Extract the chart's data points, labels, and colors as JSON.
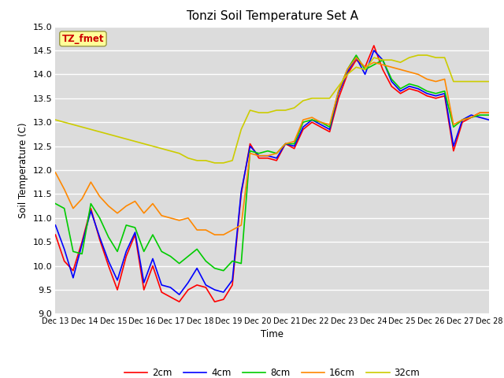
{
  "title": "Tonzi Soil Temperature Set A",
  "xlabel": "Time",
  "ylabel": "Soil Temperature (C)",
  "ylim": [
    9.0,
    15.0
  ],
  "yticks": [
    9.0,
    9.5,
    10.0,
    10.5,
    11.0,
    11.5,
    12.0,
    12.5,
    13.0,
    13.5,
    14.0,
    14.5,
    15.0
  ],
  "xtick_labels": [
    "Dec 13",
    "Dec 14",
    "Dec 15",
    "Dec 16",
    "Dec 17",
    "Dec 18",
    "Dec 19",
    "Dec 20",
    "Dec 21",
    "Dec 22",
    "Dec 23",
    "Dec 24",
    "Dec 25",
    "Dec 26",
    "Dec 27",
    "Dec 28"
  ],
  "annotation_text": "TZ_fmet",
  "annotation_bg": "#ffff99",
  "annotation_fg": "#cc0000",
  "legend_labels": [
    "2cm",
    "4cm",
    "8cm",
    "16cm",
    "32cm"
  ],
  "line_colors": [
    "#ff0000",
    "#0000ff",
    "#00cc00",
    "#ff8800",
    "#cccc00"
  ],
  "fig_bg": "#ffffff",
  "plot_bg": "#dcdcdc",
  "grid_color": "#ffffff",
  "series_2cm": [
    10.65,
    10.1,
    9.9,
    10.5,
    11.2,
    10.55,
    10.0,
    9.5,
    10.2,
    10.65,
    9.5,
    10.0,
    9.45,
    9.35,
    9.25,
    9.5,
    9.6,
    9.55,
    9.25,
    9.3,
    9.6,
    11.5,
    12.55,
    12.25,
    12.25,
    12.2,
    12.55,
    12.45,
    12.85,
    13.0,
    12.9,
    12.8,
    13.5,
    14.0,
    14.3,
    14.15,
    14.6,
    14.1,
    13.75,
    13.6,
    13.7,
    13.65,
    13.55,
    13.5,
    13.55,
    12.4,
    13.0,
    13.1,
    13.2,
    13.2
  ],
  "series_4cm": [
    10.85,
    10.35,
    9.75,
    10.45,
    11.15,
    10.6,
    10.1,
    9.7,
    10.3,
    10.7,
    9.65,
    10.15,
    9.6,
    9.55,
    9.4,
    9.65,
    9.95,
    9.6,
    9.5,
    9.45,
    9.7,
    11.55,
    12.5,
    12.3,
    12.3,
    12.25,
    12.55,
    12.5,
    12.9,
    13.05,
    12.95,
    12.85,
    13.6,
    14.05,
    14.35,
    14.0,
    14.5,
    14.3,
    13.85,
    13.65,
    13.75,
    13.7,
    13.6,
    13.55,
    13.6,
    12.5,
    13.05,
    13.15,
    13.1,
    13.05
  ],
  "series_8cm": [
    11.3,
    11.2,
    10.3,
    10.25,
    11.3,
    11.0,
    10.6,
    10.3,
    10.85,
    10.8,
    10.3,
    10.65,
    10.3,
    10.2,
    10.05,
    10.2,
    10.35,
    10.1,
    9.95,
    9.9,
    10.1,
    10.05,
    12.4,
    12.35,
    12.4,
    12.35,
    12.55,
    12.55,
    13.0,
    13.05,
    13.0,
    12.9,
    13.65,
    14.1,
    14.4,
    14.1,
    14.2,
    14.3,
    13.9,
    13.7,
    13.8,
    13.75,
    13.65,
    13.6,
    13.65,
    12.9,
    13.05,
    13.1,
    13.15,
    13.15
  ],
  "series_16cm": [
    11.95,
    11.6,
    11.2,
    11.4,
    11.75,
    11.45,
    11.25,
    11.1,
    11.25,
    11.35,
    11.1,
    11.3,
    11.05,
    11.0,
    10.95,
    11.0,
    10.75,
    10.75,
    10.65,
    10.65,
    10.75,
    10.85,
    12.35,
    12.3,
    12.3,
    12.35,
    12.55,
    12.6,
    13.05,
    13.1,
    13.0,
    12.95,
    13.65,
    14.1,
    14.35,
    14.15,
    14.25,
    14.2,
    14.15,
    14.1,
    14.05,
    14.0,
    13.9,
    13.85,
    13.9,
    12.95,
    13.05,
    13.1,
    13.2,
    13.2
  ],
  "series_32cm": [
    13.05,
    13.0,
    12.95,
    12.9,
    12.85,
    12.8,
    12.75,
    12.7,
    12.65,
    12.6,
    12.55,
    12.5,
    12.45,
    12.4,
    12.35,
    12.25,
    12.2,
    12.2,
    12.15,
    12.15,
    12.2,
    12.85,
    13.25,
    13.2,
    13.2,
    13.25,
    13.25,
    13.3,
    13.45,
    13.5,
    13.5,
    13.5,
    13.75,
    14.0,
    14.15,
    14.1,
    14.35,
    14.3,
    14.3,
    14.25,
    14.35,
    14.4,
    14.4,
    14.35,
    14.35,
    13.85,
    13.85,
    13.85,
    13.85,
    13.85
  ]
}
